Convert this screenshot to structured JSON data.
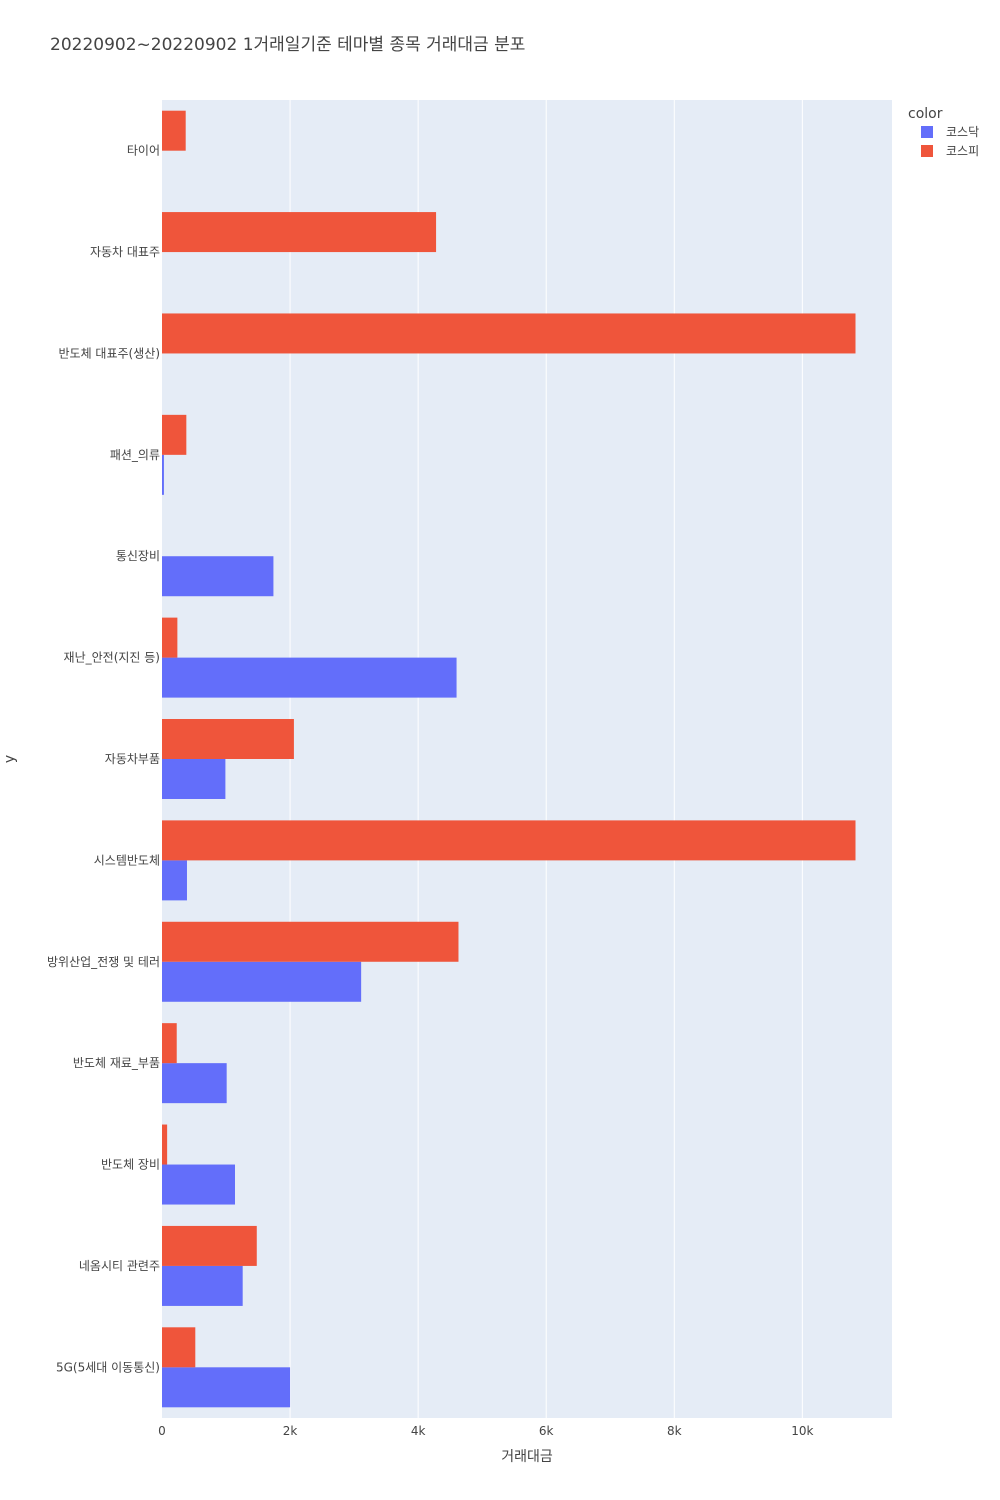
{
  "chart_data": {
    "type": "bar",
    "orientation": "horizontal",
    "barmode": "group",
    "title": "20220902~20220902 1거래일기준 테마별 종목 거래대금 분포",
    "xlabel": "거래대금",
    "ylabel": "y",
    "xlim": [
      0,
      11400
    ],
    "xticks": [
      0,
      2000,
      4000,
      6000,
      8000,
      10000
    ],
    "xtick_labels": [
      "0",
      "2k",
      "4k",
      "6k",
      "8k",
      "10k"
    ],
    "grid": true,
    "categories": [
      "타이어",
      "자동차 대표주",
      "반도체 대표주(생산)",
      "패션_의류",
      "통신장비",
      "재난_안전(지진 등)",
      "자동차부품",
      "시스템반도체",
      "방위산업_전쟁 및 테러",
      "반도체 재료_부품",
      "반도체 장비",
      "네옴시티 관련주",
      "5G(5세대 이동통신)"
    ],
    "series": [
      {
        "name": "코스닥",
        "color": "#636efa",
        "values": [
          null,
          null,
          null,
          30,
          1740,
          4600,
          990,
          390,
          3110,
          1010,
          1140,
          1260,
          2000
        ]
      },
      {
        "name": "코스피",
        "color": "#ef553b",
        "values": [
          370,
          4280,
          10830,
          380,
          null,
          240,
          2060,
          10830,
          4630,
          230,
          80,
          1480,
          520
        ]
      }
    ],
    "legend": {
      "title": "color",
      "position": "top-right"
    }
  }
}
